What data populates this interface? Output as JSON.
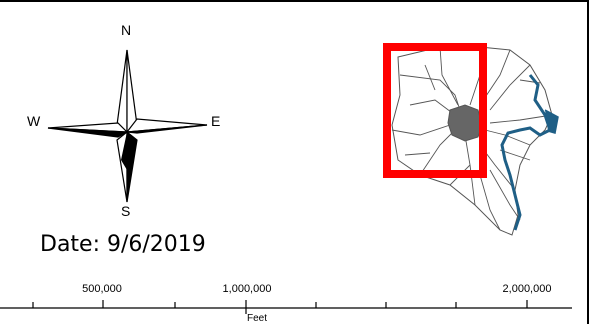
{
  "compass": {
    "north": "N",
    "south": "S",
    "east": "E",
    "west": "W"
  },
  "date_label": "Date: 9/6/2019",
  "scale_bar": {
    "labels": [
      "500,000",
      "1,000,000",
      "2,000,000"
    ],
    "unit": "Feet"
  },
  "map": {
    "highlight_color": "#ff0000",
    "water_color": "#1f5f86",
    "road_color": "#555555",
    "city_fill": "#666666"
  }
}
